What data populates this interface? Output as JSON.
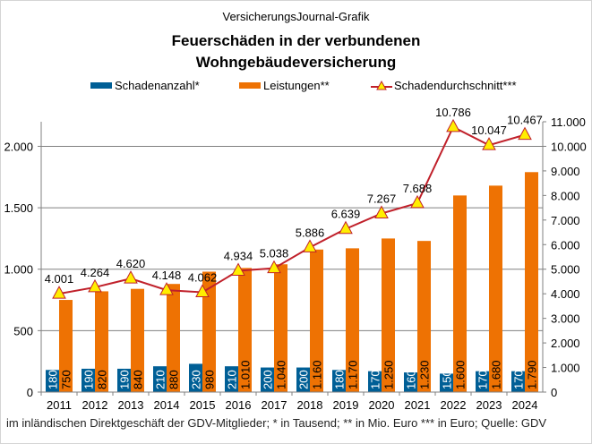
{
  "header": {
    "source": "VersicherungsJournal-Grafik",
    "title_line1": "Feuerschäden  in der verbundenen",
    "title_line2": "Wohngebäudeversicherung"
  },
  "legend": {
    "items": [
      {
        "label": "Schadenanzahl*",
        "color": "#005f96"
      },
      {
        "label": "Leistungen**",
        "color": "#ee7203"
      },
      {
        "label": "Schadendurchschnitt***",
        "line_color": "#c0202a",
        "marker_color": "#ffee00"
      }
    ]
  },
  "footnote": "im inländischen  Direktgeschäft  der GDV-Mitglieder;  * in Tausend;  ** in Mio. Euro  *** in Euro;  Quelle:  GDV",
  "chart_data": {
    "type": "bar",
    "title": "Feuerschäden in der verbundenen Wohngebäudeversicherung",
    "categories": [
      "2011",
      "2012",
      "2013",
      "2014",
      "2015",
      "2016",
      "2017",
      "2018",
      "2019",
      "2020",
      "2021",
      "2022",
      "2023",
      "2024"
    ],
    "series": [
      {
        "name": "Schadenanzahl*",
        "type": "bar",
        "axis": "left",
        "color": "#005f96",
        "values": [
          180,
          190,
          190,
          210,
          230,
          210,
          200,
          200,
          180,
          170,
          160,
          150,
          170,
          170
        ],
        "labels": [
          "180",
          "190",
          "190",
          "210",
          "230",
          "210",
          "200",
          "200",
          "180",
          "170",
          "160",
          "150",
          "170",
          "170"
        ]
      },
      {
        "name": "Leistungen**",
        "type": "bar",
        "axis": "left",
        "color": "#ee7203",
        "values": [
          750,
          820,
          840,
          880,
          980,
          1010,
          1040,
          1160,
          1170,
          1250,
          1230,
          1600,
          1680,
          1790
        ],
        "labels": [
          "750",
          "820",
          "840",
          "880",
          "980",
          "1.010",
          "1.040",
          "1.160",
          "1.170",
          "1.250",
          "1.230",
          "1.600",
          "1.680",
          "1.790"
        ]
      },
      {
        "name": "Schadendurchschnitt***",
        "type": "line",
        "axis": "right",
        "color": "#c0202a",
        "marker_color": "#ffee00",
        "values": [
          4001,
          4264,
          4620,
          4148,
          4062,
          4934,
          5038,
          5886,
          6639,
          7267,
          7688,
          10786,
          10047,
          10467
        ],
        "labels": [
          "4.001",
          "4.264",
          "4.620",
          "4.148",
          "4.062",
          "4.934",
          "5.038",
          "5.886",
          "6.639",
          "7.267",
          "7.688",
          "10.786",
          "10.047",
          "10.467"
        ]
      }
    ],
    "y_left": {
      "ylim": [
        0,
        2200
      ],
      "ticks": [
        0,
        500,
        1000,
        1500,
        2000
      ],
      "tick_labels": [
        "0",
        "500",
        "1.000",
        "1.500",
        "2.000"
      ]
    },
    "y_right": {
      "ylim": [
        0,
        11000
      ],
      "ticks": [
        0,
        1000,
        2000,
        3000,
        4000,
        5000,
        6000,
        7000,
        8000,
        9000,
        10000,
        11000
      ],
      "tick_labels": [
        "0",
        "1.000",
        "2.000",
        "3.000",
        "4.000",
        "5.000",
        "6.000",
        "7.000",
        "8.000",
        "9.000",
        "10.000",
        "11.000"
      ]
    },
    "xlabel": "",
    "ylabel": "",
    "grid": true,
    "legend_position": "top"
  }
}
